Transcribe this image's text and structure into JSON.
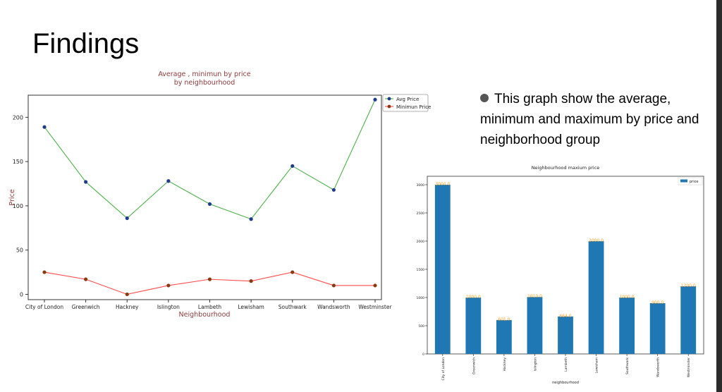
{
  "slide": {
    "title": "Findings",
    "bullet": "This graph show the average, minimum and maximum by price and neighborhood group"
  },
  "chart_data": [
    {
      "type": "line",
      "title_lines": [
        "Average , minimun by price",
        "by neighbourhood"
      ],
      "xlabel": "Neighbourhood",
      "ylabel": "Price",
      "categories": [
        "City of London",
        "Greenwich",
        "Hackney",
        "Islington",
        "Lambeth",
        "Lewisham",
        "Southwark",
        "Wandsworth",
        "Westminster"
      ],
      "ylim": [
        -6,
        225
      ],
      "yticks": [
        0,
        50,
        100,
        150,
        200
      ],
      "legend_position": "outside-top-right",
      "series": [
        {
          "name": "Avg Price",
          "values": [
            189,
            127,
            86,
            128,
            102,
            85,
            145,
            118,
            220
          ],
          "line_color": "#4daf4a",
          "marker_color": "#1f3b8a"
        },
        {
          "name": "Minimun Price",
          "values": [
            25,
            17,
            0,
            10,
            17,
            15,
            25,
            10,
            10
          ],
          "line_color": "#ff4a4a",
          "marker_color": "#8b3a0f"
        }
      ]
    },
    {
      "type": "bar",
      "title": "Neighbourhood maxium price",
      "xlabel": "neighbourhood",
      "categories": [
        "City of London",
        "Greenwich",
        "Hackney",
        "Islington",
        "Lambeth",
        "Lewisham",
        "Southwark",
        "Wandsworth",
        "Westminster"
      ],
      "ylim": [
        0,
        3150
      ],
      "yticks": [
        0,
        500,
        1000,
        1500,
        2000,
        2500,
        3000
      ],
      "legend_position": "top-right",
      "series": [
        {
          "name": "price",
          "values": [
            3000,
            1000,
            601,
            1010,
            664,
            2000,
            1000,
            900,
            1200
          ],
          "labels": [
            "3000.0",
            "1000.0",
            "601.0",
            "1010.0",
            "664.0",
            "2000.0",
            "1000.0",
            "900.0",
            "1200.0"
          ],
          "color": "#1f77b4"
        }
      ],
      "label_color": "#ff9f1c"
    }
  ]
}
